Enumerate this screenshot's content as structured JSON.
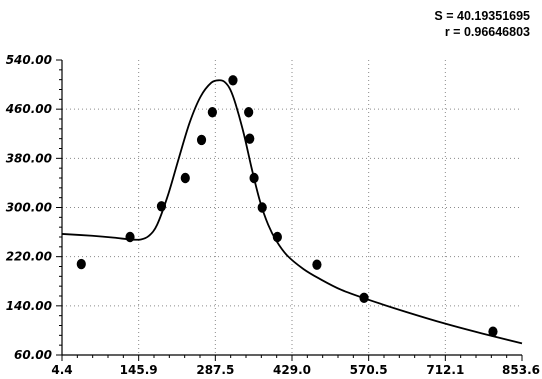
{
  "stats": {
    "s_line": "S = 40.19351695",
    "r_line": "r = 0.96646803"
  },
  "chart_data": {
    "type": "scatter",
    "title": "",
    "xlabel": "",
    "ylabel": "",
    "xlim": [
      4.4,
      853.6
    ],
    "ylim": [
      60.0,
      540.0
    ],
    "x_ticks": [
      "4.4",
      "145.9",
      "287.5",
      "429.0",
      "570.5",
      "712.1",
      "853.6"
    ],
    "y_ticks": [
      "60.00",
      "140.00",
      "220.00",
      "300.00",
      "380.00",
      "460.00",
      "540.00"
    ],
    "grid": true,
    "points": {
      "x": [
        40,
        130,
        188,
        232,
        262,
        282,
        320,
        349,
        351,
        359,
        374,
        402,
        475,
        562,
        800
      ],
      "y": [
        208,
        252,
        302,
        348,
        410,
        455,
        507,
        455,
        412,
        348,
        300,
        252,
        207,
        153,
        98
      ]
    },
    "fit_curve": {
      "x": [
        4.4,
        60,
        100,
        130,
        150,
        165,
        180,
        200,
        220,
        240,
        260,
        280,
        295,
        305,
        315,
        325,
        340,
        355,
        370,
        385,
        400,
        420,
        450,
        480,
        520,
        570,
        640,
        712,
        780,
        853.6
      ],
      "y": [
        257,
        254,
        251,
        248,
        248,
        254,
        272,
        320,
        380,
        438,
        480,
        503,
        507,
        504,
        492,
        468,
        420,
        362,
        310,
        272,
        246,
        222,
        200,
        184,
        166,
        150,
        130,
        111,
        95,
        79
      ]
    }
  }
}
